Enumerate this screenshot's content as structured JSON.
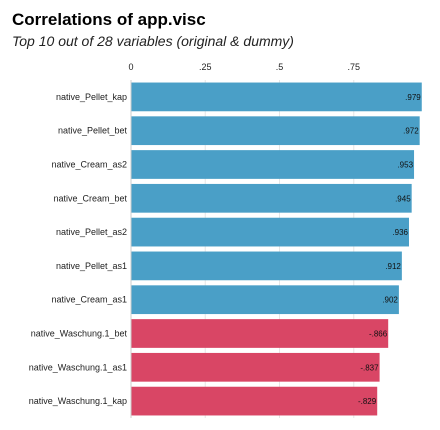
{
  "chart_data": {
    "type": "bar",
    "orientation": "horizontal",
    "title": "Correlations of app.visc",
    "subtitle": "Top 10 out of 28 variables (original & dummy)",
    "xlim": [
      0,
      1
    ],
    "x_ticks": [
      0,
      0.25,
      0.5,
      0.75
    ],
    "x_tick_labels": [
      "0",
      ".25",
      ".5",
      ".75"
    ],
    "categories": [
      "native_Pellet_kap",
      "native_Pellet_bet",
      "native_Cream_as2",
      "native_Cream_bet",
      "native_Pellet_as2",
      "native_Pellet_as1",
      "native_Cream_as1",
      "native_Waschung.1_bet",
      "native_Waschung.1_as1",
      "native_Waschung.1_kap"
    ],
    "values": [
      0.979,
      0.972,
      0.953,
      0.945,
      0.936,
      0.912,
      0.902,
      -0.866,
      -0.837,
      -0.829
    ],
    "value_labels": [
      ".979",
      ".972",
      ".953",
      ".945",
      ".936",
      ".912",
      ".902",
      "-.866",
      "-.837",
      "-.829"
    ],
    "bar_length": "absolute value",
    "colors": {
      "positive": "#4a9fc7",
      "negative": "#d94665"
    },
    "grid": true,
    "legend": "none"
  }
}
